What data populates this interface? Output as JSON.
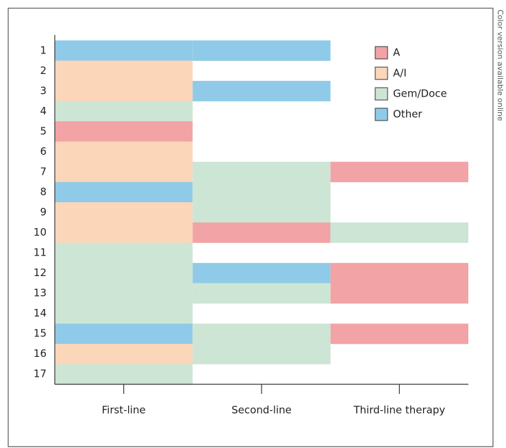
{
  "chart_data": {
    "type": "grid",
    "rows": [
      "1",
      "2",
      "3",
      "4",
      "5",
      "6",
      "7",
      "8",
      "9",
      "10",
      "11",
      "12",
      "13",
      "14",
      "15",
      "16",
      "17"
    ],
    "columns": [
      "First-line",
      "Second-line",
      "Third-line therapy"
    ],
    "series": [
      {
        "name": "A",
        "color": "#f2a3a5"
      },
      {
        "name": "A/I",
        "color": "#fbd6b9"
      },
      {
        "name": "Gem/Doce",
        "color": "#cde5d4"
      },
      {
        "name": "Other",
        "color": "#8fcbe8"
      }
    ],
    "cells": [
      [
        "Other",
        "Other",
        null
      ],
      [
        "A/I",
        null,
        null
      ],
      [
        "A/I",
        "Other",
        null
      ],
      [
        "Gem/Doce",
        null,
        null
      ],
      [
        "A",
        null,
        null
      ],
      [
        "A/I",
        null,
        null
      ],
      [
        "A/I",
        "Gem/Doce",
        "A"
      ],
      [
        "Other",
        "Gem/Doce",
        null
      ],
      [
        "A/I",
        "Gem/Doce",
        null
      ],
      [
        "A/I",
        "A",
        "Gem/Doce"
      ],
      [
        "Gem/Doce",
        null,
        null
      ],
      [
        "Gem/Doce",
        "Other",
        "A"
      ],
      [
        "Gem/Doce",
        "Gem/Doce",
        "A"
      ],
      [
        "Gem/Doce",
        null,
        null
      ],
      [
        "Other",
        "Gem/Doce",
        "A"
      ],
      [
        "A/I",
        "Gem/Doce",
        null
      ],
      [
        "Gem/Doce",
        null,
        null
      ]
    ],
    "note": "Color version available online"
  }
}
